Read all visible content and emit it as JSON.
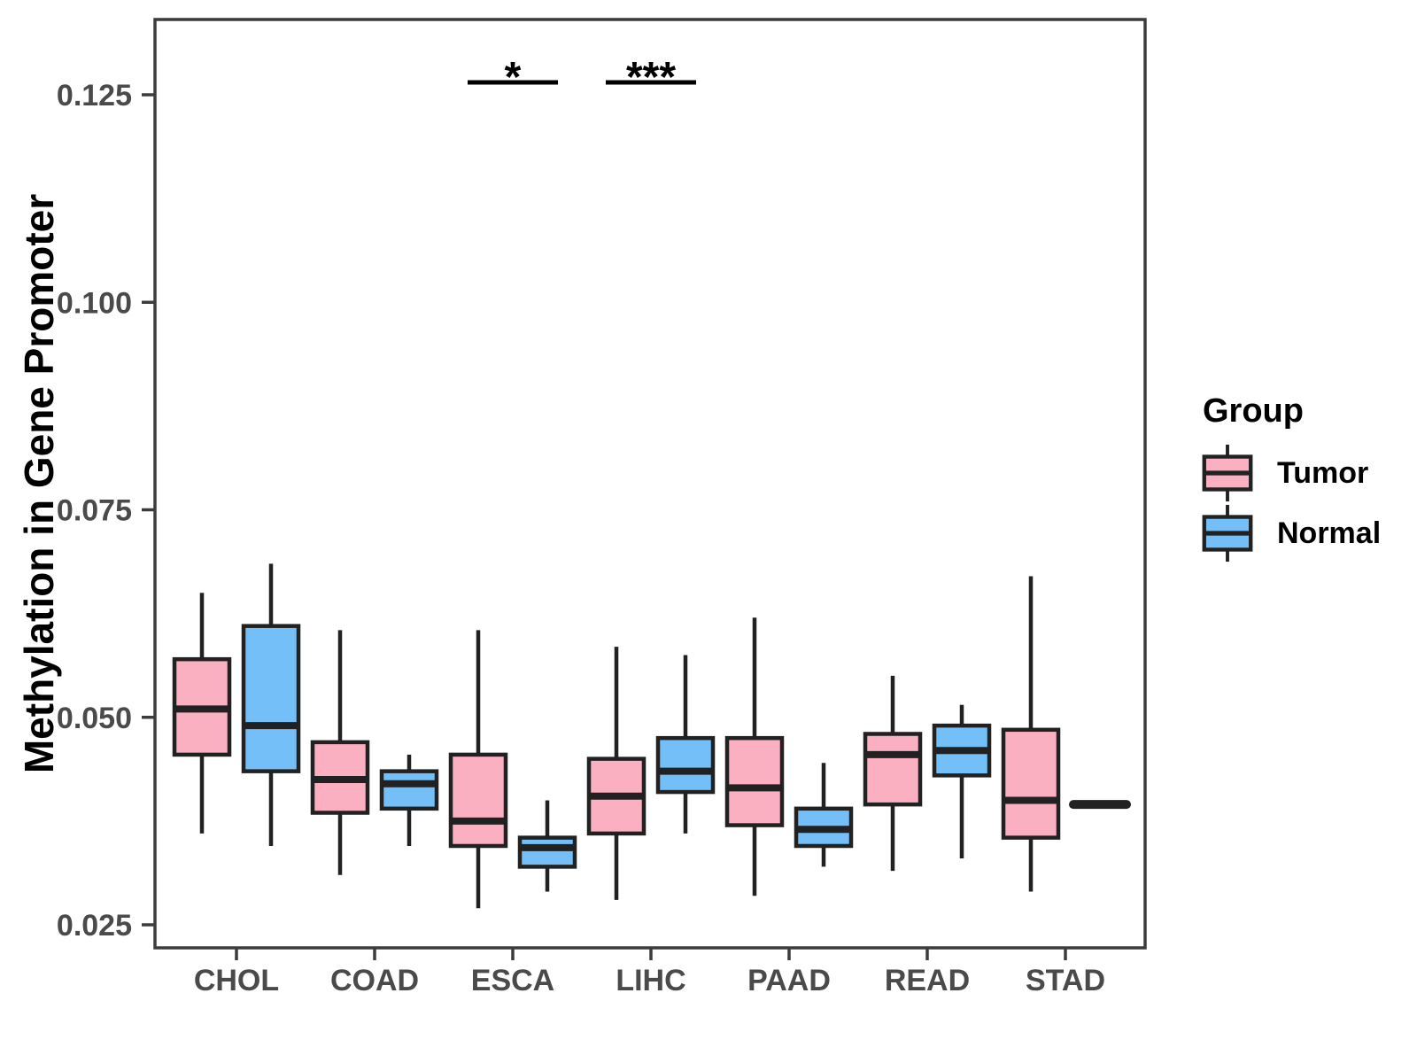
{
  "figure": {
    "background": "#FFFFFF",
    "box_line_color": "#212121",
    "panel_border_color": "#3C3C3C",
    "tick_label_color": "#4A4A4A"
  },
  "chart_data": {
    "type": "boxplot",
    "title": "",
    "xlabel": "",
    "ylabel": "Methylation in Gene Promoter",
    "categories": [
      "CHOL",
      "COAD",
      "ESCA",
      "LIHC",
      "PAAD",
      "READ",
      "STAD"
    ],
    "ylim": [
      0.022,
      0.134
    ],
    "yticks": [
      0.025,
      0.05,
      0.075,
      0.1,
      0.125
    ],
    "ytick_labels": [
      "0.025",
      "0.050",
      "0.075",
      "0.100",
      "0.125"
    ],
    "grid": false,
    "legend": {
      "title": "Group",
      "position": "right"
    },
    "groups": [
      {
        "name": "Tumor",
        "color": "#FAB0C0"
      },
      {
        "name": "Normal",
        "color": "#74BFF7"
      }
    ],
    "series": [
      {
        "name": "Tumor",
        "boxes": [
          {
            "category": "CHOL",
            "min": 0.036,
            "q1": 0.0455,
            "median": 0.051,
            "q3": 0.057,
            "max": 0.065
          },
          {
            "category": "COAD",
            "min": 0.031,
            "q1": 0.0385,
            "median": 0.0425,
            "q3": 0.047,
            "max": 0.0605
          },
          {
            "category": "ESCA",
            "min": 0.027,
            "q1": 0.0345,
            "median": 0.0375,
            "q3": 0.0455,
            "max": 0.0605
          },
          {
            "category": "LIHC",
            "min": 0.028,
            "q1": 0.036,
            "median": 0.0405,
            "q3": 0.045,
            "max": 0.0585
          },
          {
            "category": "PAAD",
            "min": 0.0285,
            "q1": 0.037,
            "median": 0.0415,
            "q3": 0.0475,
            "max": 0.062
          },
          {
            "category": "READ",
            "min": 0.0315,
            "q1": 0.0395,
            "median": 0.0455,
            "q3": 0.048,
            "max": 0.055
          },
          {
            "category": "STAD",
            "min": 0.029,
            "q1": 0.0355,
            "median": 0.04,
            "q3": 0.0485,
            "max": 0.067
          }
        ]
      },
      {
        "name": "Normal",
        "boxes": [
          {
            "category": "CHOL",
            "min": 0.0345,
            "q1": 0.0435,
            "median": 0.049,
            "q3": 0.061,
            "max": 0.0685
          },
          {
            "category": "COAD",
            "min": 0.0345,
            "q1": 0.039,
            "median": 0.042,
            "q3": 0.0435,
            "max": 0.0455
          },
          {
            "category": "ESCA",
            "min": 0.029,
            "q1": 0.032,
            "median": 0.0343,
            "q3": 0.0355,
            "max": 0.04
          },
          {
            "category": "LIHC",
            "min": 0.036,
            "q1": 0.041,
            "median": 0.0435,
            "q3": 0.0475,
            "max": 0.0575
          },
          {
            "category": "PAAD",
            "min": 0.032,
            "q1": 0.0345,
            "median": 0.0365,
            "q3": 0.039,
            "max": 0.0445
          },
          {
            "category": "READ",
            "min": 0.033,
            "q1": 0.043,
            "median": 0.046,
            "q3": 0.049,
            "max": 0.0515
          },
          {
            "category": "STAD",
            "value": 0.0395
          }
        ]
      }
    ],
    "annotations": [
      {
        "category": "ESCA",
        "label": "*",
        "y": 0.1265
      },
      {
        "category": "LIHC",
        "label": "***",
        "y": 0.1265
      }
    ]
  }
}
